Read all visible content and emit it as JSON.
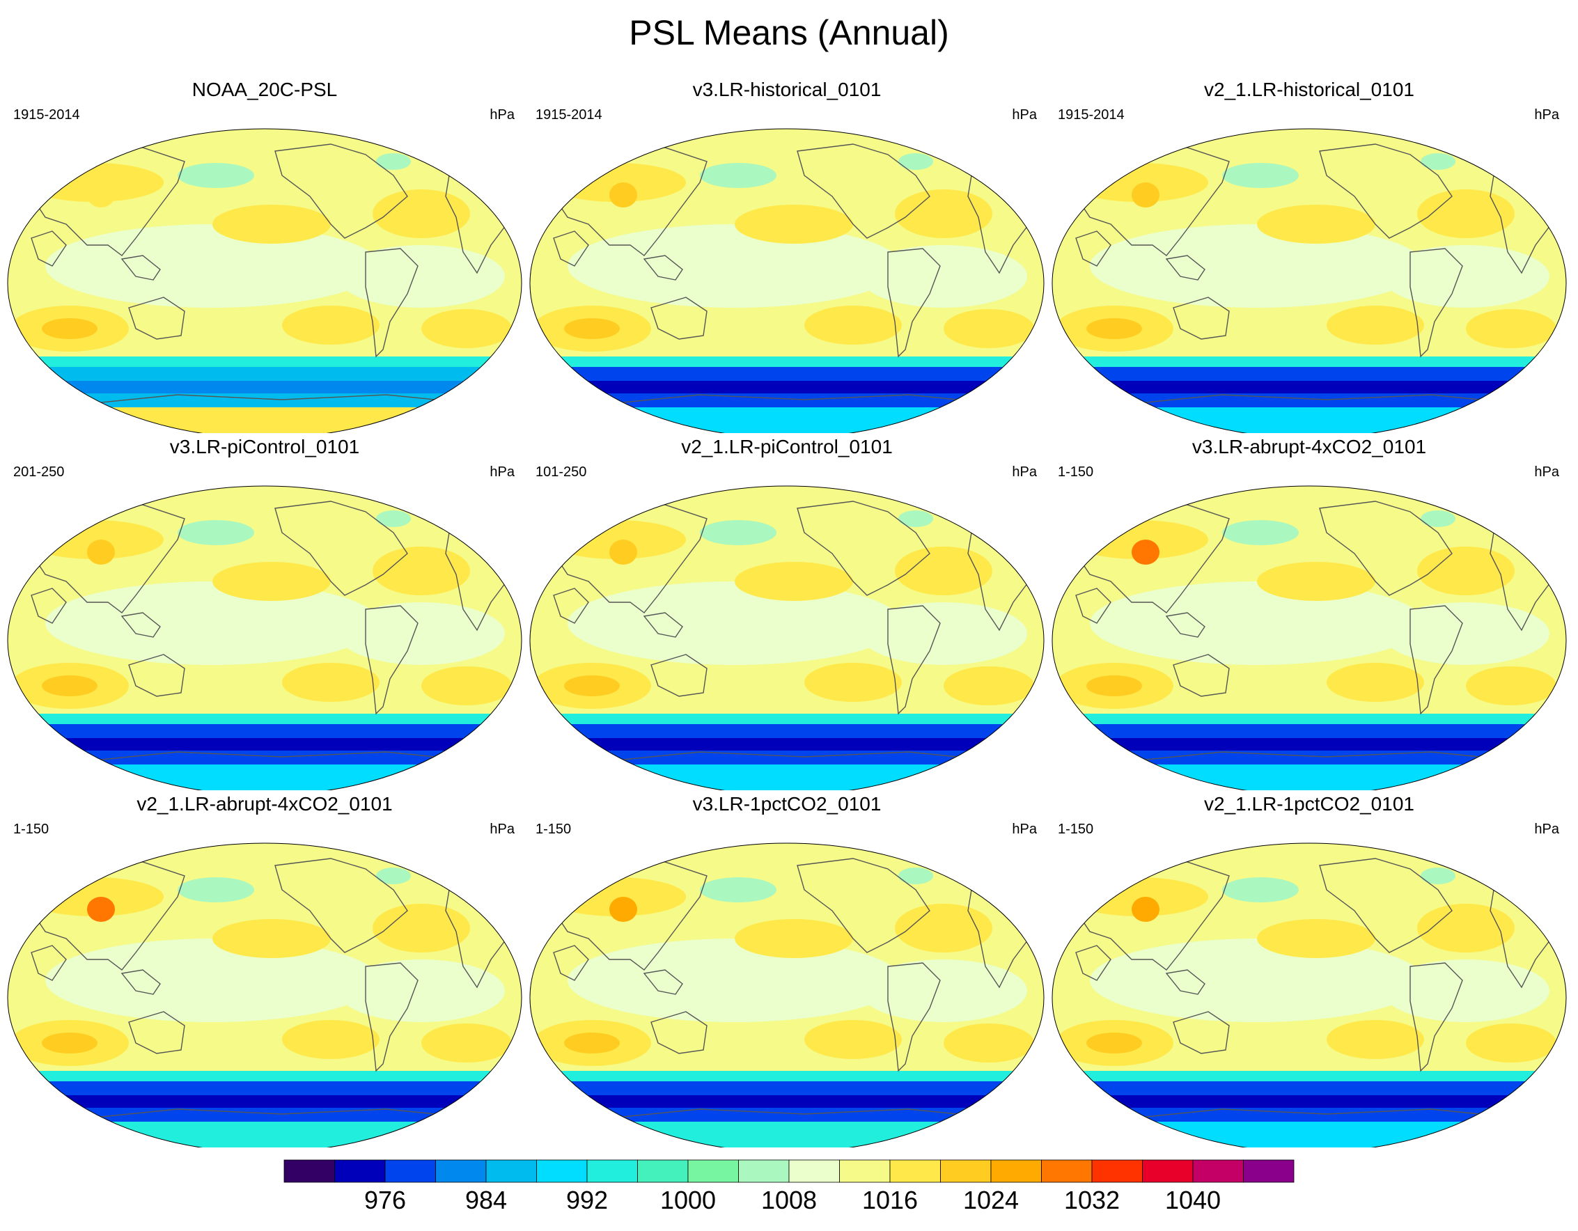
{
  "title": "PSL Means (Annual)",
  "panels": [
    {
      "title": "NOAA_20C-PSL",
      "years": "1915-2014",
      "units": "hPa"
    },
    {
      "title": "v3.LR-historical_0101",
      "years": "1915-2014",
      "units": "hPa"
    },
    {
      "title": "v2_1.LR-historical_0101",
      "years": "1915-2014",
      "units": "hPa"
    },
    {
      "title": "v3.LR-piControl_0101",
      "years": "201-250",
      "units": "hPa"
    },
    {
      "title": "v2_1.LR-piControl_0101",
      "years": "101-250",
      "units": "hPa"
    },
    {
      "title": "v3.LR-abrupt-4xCO2_0101",
      "years": "1-150",
      "units": "hPa"
    },
    {
      "title": "v2_1.LR-abrupt-4xCO2_0101",
      "years": "1-150",
      "units": "hPa"
    },
    {
      "title": "v3.LR-1pctCO2_0101",
      "years": "1-150",
      "units": "hPa"
    },
    {
      "title": "v2_1.LR-1pctCO2_0101",
      "years": "1-150",
      "units": "hPa"
    }
  ],
  "colorbar": {
    "colors": [
      "#330066",
      "#0000bb",
      "#0044ee",
      "#0088ee",
      "#00bbee",
      "#00ddff",
      "#22eedd",
      "#44f0bb",
      "#77f5a0",
      "#aaf8c0",
      "#eaffcc",
      "#f5fa88",
      "#ffe84a",
      "#ffcc22",
      "#ffaa00",
      "#ff7700",
      "#ff3300",
      "#e8002a",
      "#c40066",
      "#8a008a"
    ],
    "labels": [
      "976",
      "984",
      "992",
      "1000",
      "1008",
      "1016",
      "1024",
      "1032",
      "1040"
    ]
  },
  "panel_shading": [
    {
      "bands": [
        "#22eedd",
        "#00bbee",
        "#0088ee"
      ],
      "asia_high": "#ffe84a",
      "antarctic": "#ffe84a"
    },
    {
      "bands": [
        "#22eedd",
        "#0044ee",
        "#0000bb"
      ],
      "asia_high": "#ffcc22",
      "antarctic": "#00ddff"
    },
    {
      "bands": [
        "#22eedd",
        "#0044ee",
        "#0000bb"
      ],
      "asia_high": "#ffcc22",
      "antarctic": "#00ddff"
    },
    {
      "bands": [
        "#22eedd",
        "#0044ee",
        "#0000bb"
      ],
      "asia_high": "#ffcc22",
      "antarctic": "#00ddff"
    },
    {
      "bands": [
        "#22eedd",
        "#0044ee",
        "#0000bb"
      ],
      "asia_high": "#ffcc22",
      "antarctic": "#00ddff"
    },
    {
      "bands": [
        "#22eedd",
        "#0044ee",
        "#0000bb"
      ],
      "asia_high": "#ff7700",
      "antarctic": "#00ddff"
    },
    {
      "bands": [
        "#22eedd",
        "#0044ee",
        "#0000bb"
      ],
      "asia_high": "#ff7700",
      "antarctic": "#22eedd"
    },
    {
      "bands": [
        "#22eedd",
        "#0044ee",
        "#0000bb"
      ],
      "asia_high": "#ffaa00",
      "antarctic": "#22eedd"
    },
    {
      "bands": [
        "#22eedd",
        "#0044ee",
        "#0000bb"
      ],
      "asia_high": "#ffaa00",
      "antarctic": "#00ddff"
    }
  ]
}
